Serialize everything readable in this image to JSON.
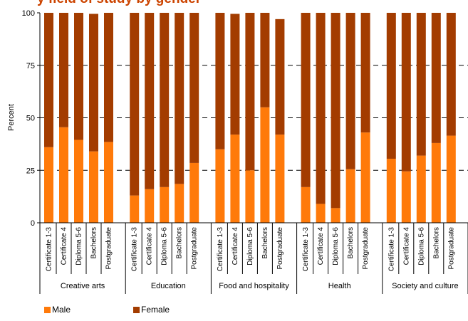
{
  "chart_data": {
    "type": "bar",
    "stacked": true,
    "title_fragment": "y field of study by gender",
    "ylabel": "Percent",
    "ylim": [
      0,
      100
    ],
    "yticks": [
      "0",
      "25",
      "50",
      "75",
      "100"
    ],
    "gridlines": "dashed at 25, 50, 75",
    "groups": [
      {
        "name": "Creative arts",
        "categories": [
          "Certificate 1-3",
          "Certificate 4",
          "Diploma 5-6",
          "Bachelors",
          "Postgraduate"
        ]
      },
      {
        "name": "Education",
        "categories": [
          "Certificate 1-3",
          "Certificate 4",
          "Diploma 5-6",
          "Bachelors",
          "Postgraduate"
        ]
      },
      {
        "name": "Food and hospitality",
        "categories": [
          "Certificate 1-3",
          "Certificate 4",
          "Diploma 5-6",
          "Bachelors",
          "Postgraduate"
        ]
      },
      {
        "name": "Health",
        "categories": [
          "Certificate 1-3",
          "Certificate 4",
          "Diploma 5-6",
          "Bachelors",
          "Postgraduate"
        ]
      },
      {
        "name": "Society and culture",
        "categories": [
          "Certificate 1-3",
          "Certificate 4",
          "Diploma 5-6",
          "Bachelors",
          "Postgraduate"
        ]
      }
    ],
    "series": [
      {
        "name": "Male",
        "color": "#ff7a0a",
        "values": [
          36,
          45.5,
          39.5,
          34,
          38.5,
          13,
          16,
          17,
          18.5,
          28.5,
          35,
          42,
          25,
          55,
          42,
          17,
          9,
          7,
          25.5,
          43,
          30.5,
          24.5,
          32,
          38,
          41.5
        ]
      },
      {
        "name": "Female",
        "color": "#a33c00",
        "values": [
          64,
          54.5,
          60.5,
          65.5,
          61.5,
          87,
          84,
          83,
          81.5,
          71.5,
          65,
          57.5,
          75,
          45,
          55,
          83,
          91,
          93,
          74.5,
          57,
          69.5,
          75.5,
          68,
          62,
          58.5
        ]
      }
    ],
    "legend_position": "bottom-left"
  }
}
